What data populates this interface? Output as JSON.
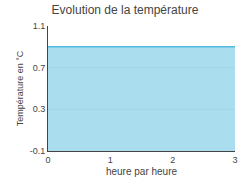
{
  "chart_data": {
    "type": "area",
    "title": "Evolution de la température",
    "xlabel": "heure par heure",
    "ylabel": "Température en °C",
    "x": [
      0,
      3
    ],
    "values": [
      0.9,
      0.9
    ],
    "color": "#55bbdd",
    "xlim": [
      0,
      3
    ],
    "ylim": [
      -0.1,
      1.1
    ],
    "xticks": [
      0,
      1,
      2,
      3
    ],
    "yticks": [
      -0.1,
      0.3,
      0.7,
      1.1
    ],
    "grid": "y"
  }
}
